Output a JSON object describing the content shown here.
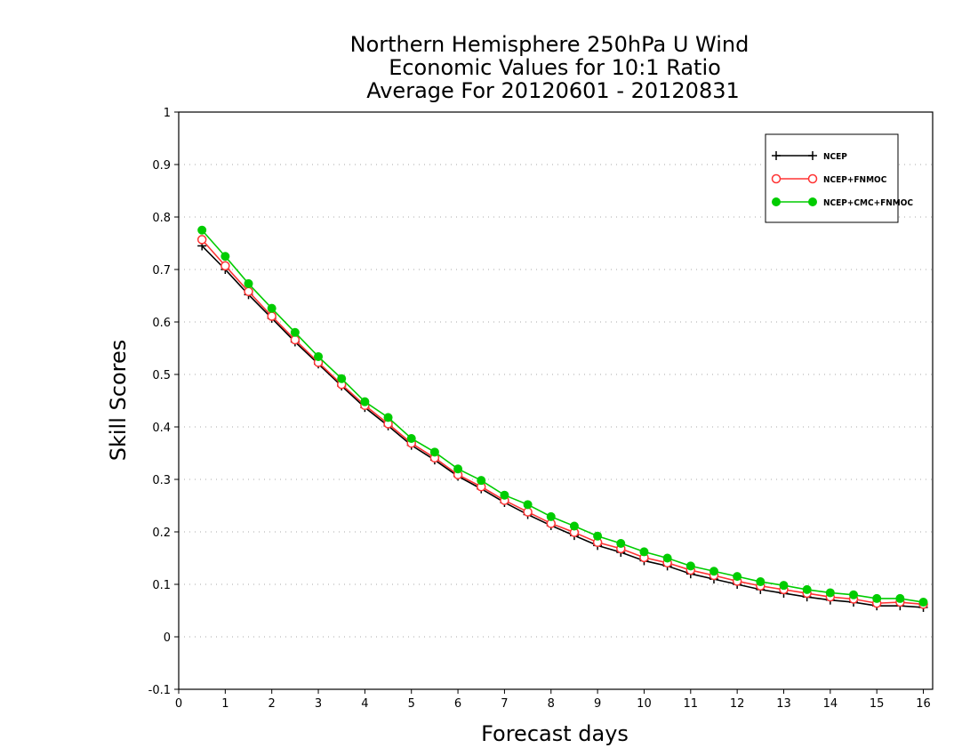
{
  "chart_data": {
    "type": "line",
    "title_lines": [
      "Northern Hemisphere 250hPa U Wind",
      "Economic Values for 10:1 Ratio",
      "Average For 20120601 - 20120831"
    ],
    "xlabel": "Forecast days",
    "ylabel": "Skill Scores",
    "xlim": [
      0,
      16.2
    ],
    "ylim": [
      -0.1,
      1
    ],
    "xticks": [
      "0",
      "1",
      "2",
      "3",
      "4",
      "5",
      "6",
      "7",
      "8",
      "9",
      "10",
      "11",
      "12",
      "13",
      "14",
      "15",
      "16"
    ],
    "yticks": [
      "-0.1",
      "0",
      "0.1",
      "0.2",
      "0.3",
      "0.4",
      "0.5",
      "0.6",
      "0.7",
      "0.8",
      "0.9",
      "1"
    ],
    "grid": true,
    "legend_position": "top-right",
    "x": [
      0.5,
      1,
      1.5,
      2,
      2.5,
      3,
      3.5,
      4,
      4.5,
      5,
      5.5,
      6,
      6.5,
      7,
      7.5,
      8,
      8.5,
      9,
      9.5,
      10,
      10.5,
      11,
      11.5,
      12,
      12.5,
      13,
      13.5,
      14,
      14.5,
      15,
      15.5,
      16
    ],
    "series": [
      {
        "name": "NCEP",
        "color": "#000000",
        "marker": "plus",
        "values": [
          0.745,
          0.7,
          0.652,
          0.607,
          0.562,
          0.52,
          0.478,
          0.437,
          0.402,
          0.365,
          0.337,
          0.306,
          0.282,
          0.256,
          0.233,
          0.212,
          0.193,
          0.174,
          0.161,
          0.145,
          0.135,
          0.12,
          0.11,
          0.1,
          0.09,
          0.083,
          0.076,
          0.07,
          0.066,
          0.059,
          0.059,
          0.056
        ]
      },
      {
        "name": "NCEP+FNMOC",
        "color": "#ff3333",
        "marker": "open-circle",
        "values": [
          0.757,
          0.707,
          0.658,
          0.611,
          0.566,
          0.523,
          0.481,
          0.441,
          0.406,
          0.369,
          0.341,
          0.309,
          0.286,
          0.26,
          0.238,
          0.216,
          0.199,
          0.18,
          0.168,
          0.151,
          0.141,
          0.127,
          0.117,
          0.106,
          0.097,
          0.09,
          0.083,
          0.076,
          0.072,
          0.064,
          0.066,
          0.062
        ]
      },
      {
        "name": "NCEP+CMC+FNMOC",
        "color": "#00cc00",
        "marker": "filled-circle",
        "values": [
          0.775,
          0.725,
          0.673,
          0.626,
          0.58,
          0.534,
          0.492,
          0.448,
          0.418,
          0.378,
          0.352,
          0.32,
          0.298,
          0.27,
          0.252,
          0.229,
          0.211,
          0.192,
          0.178,
          0.162,
          0.15,
          0.135,
          0.125,
          0.115,
          0.105,
          0.098,
          0.09,
          0.084,
          0.08,
          0.073,
          0.073,
          0.066
        ]
      }
    ]
  }
}
